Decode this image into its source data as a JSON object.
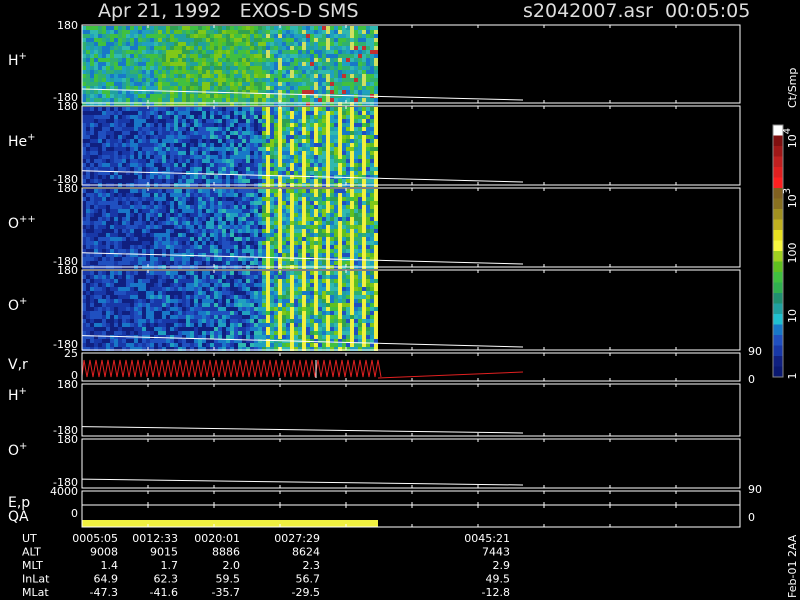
{
  "header": {
    "title": "Apr 21, 1992   EXOS-D SMS",
    "file": "s2042007.asr  00:05:05"
  },
  "panels": [
    {
      "label": "H",
      "sup": "+",
      "top": "180",
      "bottom": "-180"
    },
    {
      "label": "He",
      "sup": "+",
      "top": "180",
      "bottom": "-180"
    },
    {
      "label": "O",
      "sup": "++",
      "top": "180",
      "bottom": "-180"
    },
    {
      "label": "O",
      "sup": "+",
      "top": "180",
      "bottom": "-180"
    },
    {
      "label": "V,r",
      "top": "25",
      "bottom": "0",
      "right_top": "90",
      "right_bottom": "0"
    },
    {
      "label": "H",
      "sup": "+",
      "top": "180",
      "bottom": "-180"
    },
    {
      "label": "O",
      "sup": "+",
      "top": "180",
      "bottom": "-180"
    },
    {
      "label": "E,p",
      "top": "4000",
      "right_top": "90"
    },
    {
      "label": "QA",
      "bottom": "0",
      "right_bottom": "0"
    }
  ],
  "colorbar": {
    "title": "Ct/Smp",
    "labels": [
      {
        "base": "10",
        "sup": "4"
      },
      {
        "base": "10",
        "sup": "3"
      },
      {
        "base": "100"
      },
      {
        "base": "10"
      },
      {
        "base": "1"
      }
    ]
  },
  "footer": {
    "rows": [
      {
        "name": "UT",
        "values": [
          "0005:05",
          "0012:33",
          "0020:01",
          "0027:29",
          "0045:21"
        ]
      },
      {
        "name": "ALT",
        "values": [
          "9008",
          "9015",
          "8886",
          "8624",
          "7443"
        ]
      },
      {
        "name": "MLT",
        "values": [
          "1.4",
          "1.7",
          "2.0",
          "2.3",
          "2.9"
        ]
      },
      {
        "name": "InLat",
        "values": [
          "64.9",
          "62.3",
          "59.5",
          "56.7",
          "49.5"
        ]
      },
      {
        "name": "MLat",
        "values": [
          "-47.3",
          "-41.6",
          "-35.7",
          "-29.5",
          "-12.8"
        ]
      }
    ],
    "stamp": "Feb-01 2AA"
  }
}
